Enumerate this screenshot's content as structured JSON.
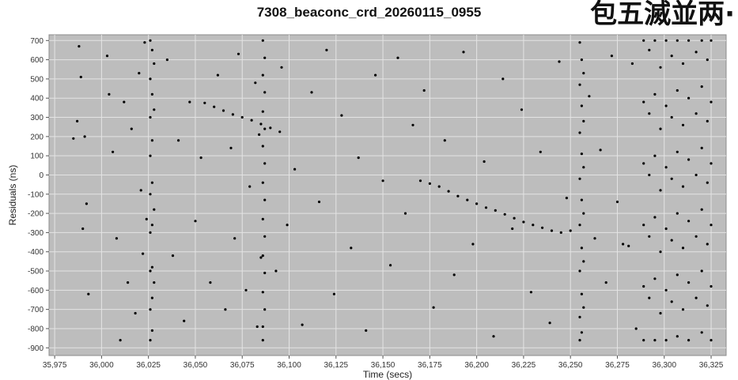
{
  "chart_data": {
    "type": "scatter",
    "title": "7308_beaconc_crd_20260115_0955",
    "xlabel": "Time (secs)",
    "ylabel": "Residuals (ns)",
    "xlim": [
      35972,
      36333
    ],
    "ylim": [
      -940,
      730
    ],
    "x_ticks": [
      35975,
      36000,
      36025,
      36050,
      36075,
      36100,
      36125,
      36150,
      36175,
      36200,
      36225,
      36250,
      36275,
      36300,
      36325
    ],
    "x_tick_labels": [
      "35,975",
      "36,000",
      "36,025",
      "36,050",
      "36,075",
      "36,100",
      "36,125",
      "36,150",
      "36,175",
      "36,200",
      "36,225",
      "36,250",
      "36,275",
      "36,300",
      "36,325"
    ],
    "y_ticks": [
      700,
      600,
      500,
      400,
      300,
      200,
      100,
      0,
      -100,
      -200,
      -300,
      -400,
      -500,
      -600,
      -700,
      -800,
      -900
    ],
    "y_tick_labels": [
      "700",
      "600",
      "500",
      "400",
      "300",
      "200",
      "100",
      "0",
      "-100",
      "-200",
      "-300",
      "-400",
      "-500",
      "-600",
      "-700",
      "-800",
      "-900"
    ],
    "grid": true,
    "legend": "none",
    "colors": {
      "plot_background": "#bdbdbd",
      "grid": "#e4e4e4",
      "marker": "#000000"
    },
    "series": [
      {
        "points": [
          [
            35987,
            280
          ],
          [
            35988,
            670
          ],
          [
            35989,
            510
          ],
          [
            35985,
            190
          ],
          [
            35991,
            200
          ],
          [
            35992,
            -150
          ],
          [
            35990,
            -280
          ],
          [
            35993,
            -620
          ],
          [
            36003,
            620
          ],
          [
            36004,
            420
          ],
          [
            36006,
            120
          ],
          [
            36008,
            -330
          ],
          [
            36010,
            -860
          ],
          [
            36012,
            380
          ],
          [
            36014,
            -560
          ],
          [
            36016,
            240
          ],
          [
            36018,
            -720
          ],
          [
            36020,
            530
          ],
          [
            36021,
            -80
          ],
          [
            36022,
            -410
          ],
          [
            36023,
            690
          ],
          [
            36024,
            -230
          ],
          [
            36026,
            700
          ],
          [
            36026,
            500
          ],
          [
            36026,
            300
          ],
          [
            36026,
            100
          ],
          [
            36026,
            -100
          ],
          [
            36026,
            -300
          ],
          [
            36026,
            -500
          ],
          [
            36026,
            -700
          ],
          [
            36026,
            -860
          ],
          [
            36027,
            650
          ],
          [
            36027,
            420
          ],
          [
            36027,
            180
          ],
          [
            36027,
            -40
          ],
          [
            36027,
            -260
          ],
          [
            36027,
            -480
          ],
          [
            36027,
            -640
          ],
          [
            36027,
            -810
          ],
          [
            36028,
            580
          ],
          [
            36028,
            340
          ],
          [
            36028,
            -180
          ],
          [
            36028,
            -560
          ],
          [
            36035,
            600
          ],
          [
            36038,
            -420
          ],
          [
            36041,
            180
          ],
          [
            36044,
            -760
          ],
          [
            36047,
            380
          ],
          [
            36050,
            -240
          ],
          [
            36053,
            90
          ],
          [
            36055,
            375
          ],
          [
            36060,
            355
          ],
          [
            36065,
            335
          ],
          [
            36070,
            315
          ],
          [
            36075,
            300
          ],
          [
            36080,
            285
          ],
          [
            36085,
            265
          ],
          [
            36090,
            245
          ],
          [
            36095,
            225
          ],
          [
            36058,
            -560
          ],
          [
            36062,
            520
          ],
          [
            36066,
            -700
          ],
          [
            36069,
            140
          ],
          [
            36071,
            -330
          ],
          [
            36073,
            630
          ],
          [
            36077,
            -600
          ],
          [
            36079,
            -60
          ],
          [
            36082,
            480
          ],
          [
            36083,
            -790
          ],
          [
            36084,
            210
          ],
          [
            36085,
            -430
          ],
          [
            36086,
            700
          ],
          [
            36086,
            520
          ],
          [
            36086,
            330
          ],
          [
            36086,
            150
          ],
          [
            36086,
            -40
          ],
          [
            36086,
            -230
          ],
          [
            36086,
            -420
          ],
          [
            36086,
            -610
          ],
          [
            36086,
            -790
          ],
          [
            36086,
            -860
          ],
          [
            36087,
            610
          ],
          [
            36087,
            430
          ],
          [
            36087,
            240
          ],
          [
            36087,
            60
          ],
          [
            36087,
            -130
          ],
          [
            36087,
            -320
          ],
          [
            36087,
            -510
          ],
          [
            36087,
            -700
          ],
          [
            36093,
            -500
          ],
          [
            36096,
            560
          ],
          [
            36099,
            -260
          ],
          [
            36103,
            30
          ],
          [
            36107,
            -780
          ],
          [
            36112,
            430
          ],
          [
            36116,
            -140
          ],
          [
            36120,
            650
          ],
          [
            36124,
            -620
          ],
          [
            36128,
            310
          ],
          [
            36133,
            -380
          ],
          [
            36137,
            90
          ],
          [
            36141,
            -810
          ],
          [
            36146,
            520
          ],
          [
            36150,
            -30
          ],
          [
            36154,
            -470
          ],
          [
            36158,
            610
          ],
          [
            36162,
            -200
          ],
          [
            36166,
            260
          ],
          [
            36170,
            -30
          ],
          [
            36175,
            -45
          ],
          [
            36180,
            -60
          ],
          [
            36185,
            -85
          ],
          [
            36190,
            -110
          ],
          [
            36195,
            -130
          ],
          [
            36200,
            -150
          ],
          [
            36205,
            -170
          ],
          [
            36210,
            -185
          ],
          [
            36215,
            -205
          ],
          [
            36220,
            -225
          ],
          [
            36225,
            -245
          ],
          [
            36230,
            -260
          ],
          [
            36235,
            -275
          ],
          [
            36240,
            -290
          ],
          [
            36245,
            -300
          ],
          [
            36250,
            -290
          ],
          [
            36172,
            440
          ],
          [
            36177,
            -690
          ],
          [
            36183,
            180
          ],
          [
            36188,
            -520
          ],
          [
            36193,
            640
          ],
          [
            36198,
            -360
          ],
          [
            36204,
            70
          ],
          [
            36209,
            -840
          ],
          [
            36214,
            500
          ],
          [
            36219,
            -280
          ],
          [
            36224,
            340
          ],
          [
            36229,
            -610
          ],
          [
            36234,
            120
          ],
          [
            36239,
            -770
          ],
          [
            36244,
            590
          ],
          [
            36248,
            -120
          ],
          [
            36255,
            690
          ],
          [
            36255,
            470
          ],
          [
            36255,
            220
          ],
          [
            36255,
            -20
          ],
          [
            36255,
            -260
          ],
          [
            36255,
            -500
          ],
          [
            36255,
            -740
          ],
          [
            36255,
            -860
          ],
          [
            36256,
            600
          ],
          [
            36256,
            360
          ],
          [
            36256,
            110
          ],
          [
            36256,
            -130
          ],
          [
            36256,
            -380
          ],
          [
            36256,
            -620
          ],
          [
            36256,
            -820
          ],
          [
            36257,
            530
          ],
          [
            36257,
            280
          ],
          [
            36257,
            40
          ],
          [
            36257,
            -200
          ],
          [
            36257,
            -450
          ],
          [
            36257,
            -690
          ],
          [
            36260,
            410
          ],
          [
            36263,
            -330
          ],
          [
            36266,
            130
          ],
          [
            36269,
            -560
          ],
          [
            36272,
            620
          ],
          [
            36275,
            -140
          ],
          [
            36278,
            -360
          ],
          [
            36281,
            -370
          ],
          [
            36283,
            580
          ],
          [
            36285,
            -800
          ],
          [
            36289,
            700
          ],
          [
            36289,
            380
          ],
          [
            36289,
            60
          ],
          [
            36289,
            -260
          ],
          [
            36289,
            -580
          ],
          [
            36289,
            -860
          ],
          [
            36292,
            650
          ],
          [
            36292,
            320
          ],
          [
            36292,
            0
          ],
          [
            36292,
            -320
          ],
          [
            36292,
            -640
          ],
          [
            36295,
            700
          ],
          [
            36295,
            420
          ],
          [
            36295,
            100
          ],
          [
            36295,
            -220
          ],
          [
            36295,
            -540
          ],
          [
            36295,
            -860
          ],
          [
            36298,
            560
          ],
          [
            36298,
            240
          ],
          [
            36298,
            -80
          ],
          [
            36298,
            -400
          ],
          [
            36298,
            -720
          ],
          [
            36301,
            700
          ],
          [
            36301,
            360
          ],
          [
            36301,
            40
          ],
          [
            36301,
            -280
          ],
          [
            36301,
            -600
          ],
          [
            36301,
            -860
          ],
          [
            36304,
            620
          ],
          [
            36304,
            300
          ],
          [
            36304,
            -20
          ],
          [
            36304,
            -340
          ],
          [
            36304,
            -660
          ],
          [
            36307,
            700
          ],
          [
            36307,
            440
          ],
          [
            36307,
            120
          ],
          [
            36307,
            -200
          ],
          [
            36307,
            -520
          ],
          [
            36307,
            -840
          ],
          [
            36310,
            580
          ],
          [
            36310,
            260
          ],
          [
            36310,
            -60
          ],
          [
            36310,
            -380
          ],
          [
            36310,
            -700
          ],
          [
            36313,
            700
          ],
          [
            36313,
            400
          ],
          [
            36313,
            80
          ],
          [
            36313,
            -240
          ],
          [
            36313,
            -560
          ],
          [
            36313,
            -860
          ],
          [
            36317,
            640
          ],
          [
            36317,
            320
          ],
          [
            36317,
            0
          ],
          [
            36317,
            -320
          ],
          [
            36317,
            -640
          ],
          [
            36320,
            700
          ],
          [
            36320,
            460
          ],
          [
            36320,
            140
          ],
          [
            36320,
            -180
          ],
          [
            36320,
            -500
          ],
          [
            36320,
            -820
          ],
          [
            36323,
            600
          ],
          [
            36323,
            280
          ],
          [
            36323,
            -40
          ],
          [
            36323,
            -360
          ],
          [
            36323,
            -680
          ],
          [
            36325,
            700
          ],
          [
            36325,
            380
          ],
          [
            36325,
            60
          ],
          [
            36325,
            -260
          ],
          [
            36325,
            -580
          ],
          [
            36325,
            -860
          ]
        ]
      }
    ]
  }
}
